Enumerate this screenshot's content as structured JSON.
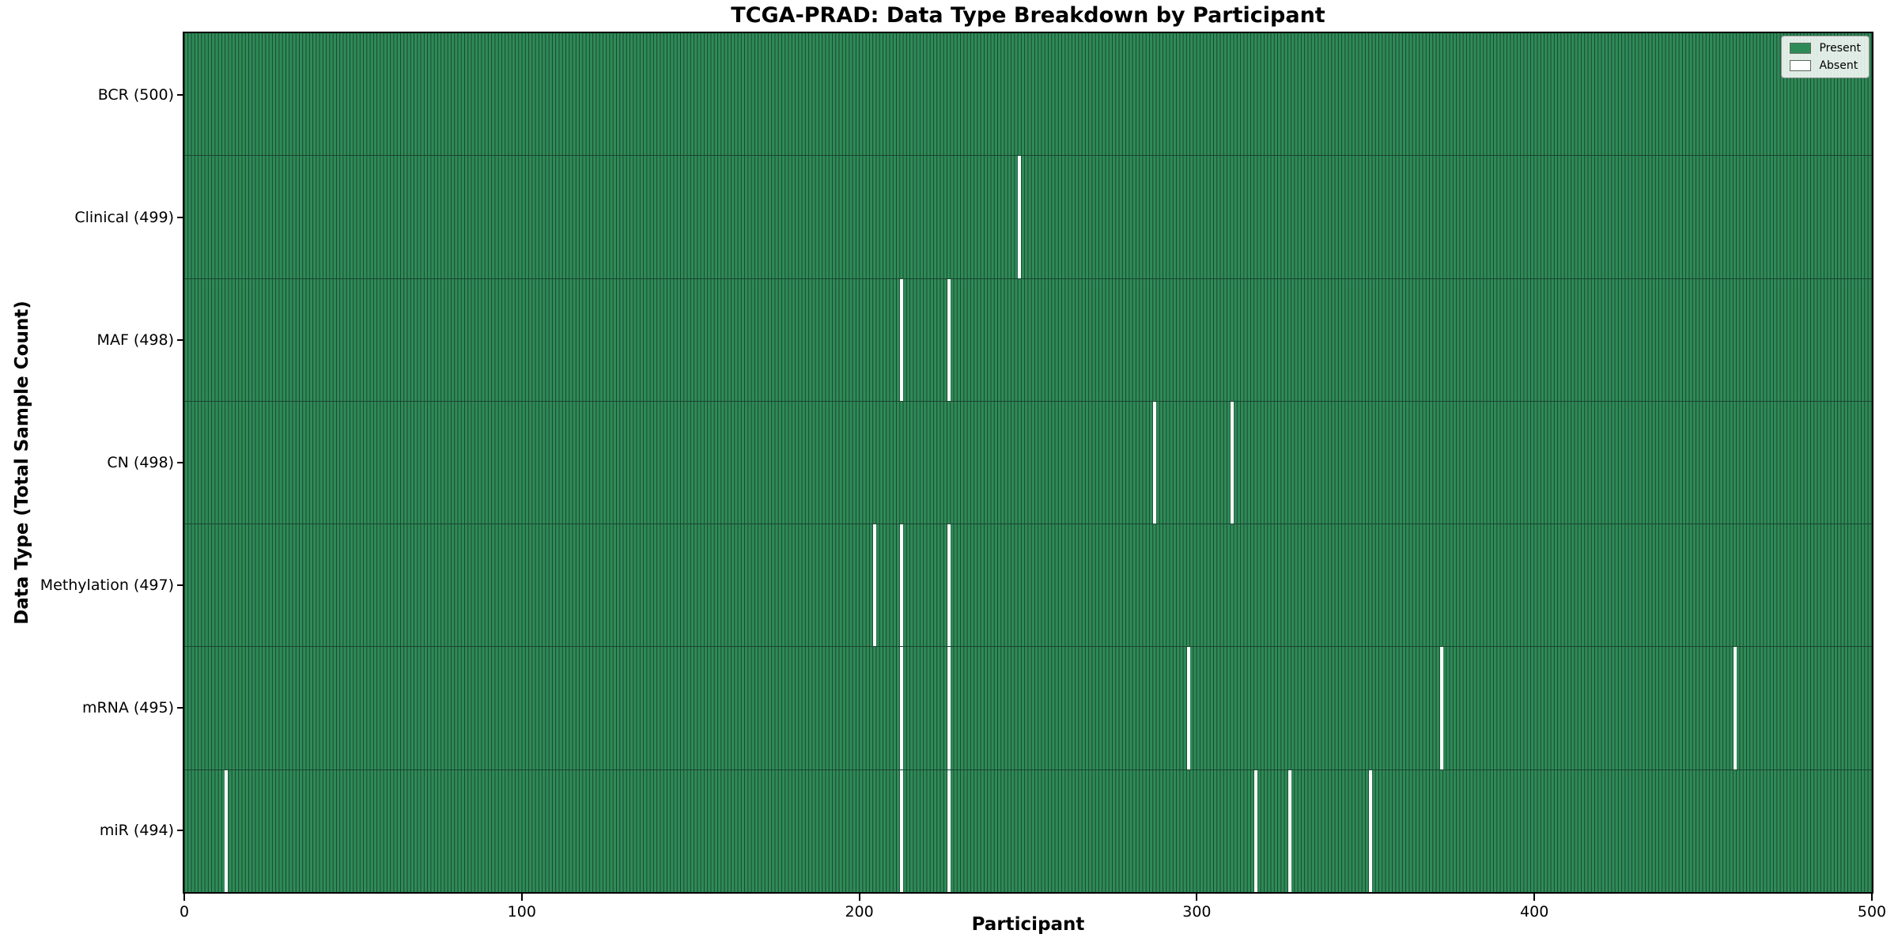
{
  "chart_data": {
    "type": "heatmap",
    "title": "TCGA-PRAD: Data Type Breakdown by Participant",
    "xlabel": "Participant",
    "ylabel": "Data Type (Total Sample Count)",
    "xlim": [
      0,
      500
    ],
    "x_ticks": [
      0,
      100,
      200,
      300,
      400,
      500
    ],
    "n_participants": 500,
    "grid": false,
    "legend_position": "upper-right",
    "colors": {
      "present": "#2e8b57",
      "absent": "#ffffff",
      "bar_edge": "#1b4430",
      "frame": "#000000"
    },
    "legend": [
      {
        "label": "Present",
        "color": "#2e8b57"
      },
      {
        "label": "Absent",
        "color": "#ffffff"
      }
    ],
    "rows": [
      {
        "data_type": "BCR",
        "count": 500,
        "label": "BCR (500)",
        "absent_participants": []
      },
      {
        "data_type": "Clinical",
        "count": 499,
        "label": "Clinical (499)",
        "absent_participants": [
          247
        ]
      },
      {
        "data_type": "MAF",
        "count": 498,
        "label": "MAF (498)",
        "absent_participants": [
          212,
          226
        ]
      },
      {
        "data_type": "CN",
        "count": 498,
        "label": "CN (498)",
        "absent_participants": [
          287,
          310
        ]
      },
      {
        "data_type": "Methylation",
        "count": 497,
        "label": "Methylation (497)",
        "absent_participants": [
          204,
          212,
          226
        ]
      },
      {
        "data_type": "mRNA",
        "count": 495,
        "label": "mRNA (495)",
        "absent_participants": [
          212,
          226,
          297,
          372,
          459
        ]
      },
      {
        "data_type": "miR",
        "count": 494,
        "label": "miR (494)",
        "absent_participants": [
          12,
          212,
          226,
          317,
          327,
          351
        ]
      }
    ]
  }
}
